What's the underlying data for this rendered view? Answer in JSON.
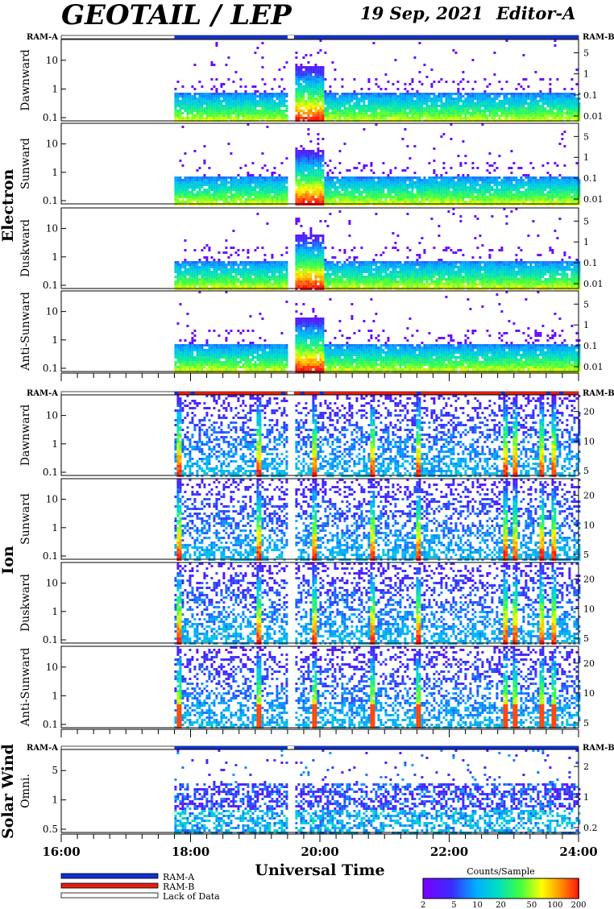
{
  "header": {
    "title": "GEOTAIL / LEP",
    "date": "19 Sep, 2021",
    "editor": "Editor-A"
  },
  "ram_labels": {
    "a": "RAM-A",
    "b": "RAM-B"
  },
  "colors": {
    "ram_a": "#1030d0",
    "ram_b": "#e02010",
    "gap": "#ffffff"
  },
  "groups": [
    {
      "id": "electron",
      "label": "Electron"
    },
    {
      "id": "ion",
      "label": "Ion"
    },
    {
      "id": "sw",
      "label": "Solar Wind"
    }
  ],
  "panels": [
    {
      "group": "electron",
      "label": "Dawnward",
      "left_ticks": [
        "0.1",
        "1",
        "10"
      ],
      "right_ticks": [
        "0.01",
        "0.1",
        "1",
        "5"
      ]
    },
    {
      "group": "electron",
      "label": "Sunward",
      "left_ticks": [
        "0.1",
        "1",
        "10"
      ],
      "right_ticks": [
        "0.01",
        "0.1",
        "1",
        "5"
      ]
    },
    {
      "group": "electron",
      "label": "Duskward",
      "left_ticks": [
        "0.1",
        "1",
        "10"
      ],
      "right_ticks": [
        "0.01",
        "0.1",
        "1",
        "5"
      ]
    },
    {
      "group": "electron",
      "label": "Anti-Sunward",
      "left_ticks": [
        "0.1",
        "1",
        "10"
      ],
      "right_ticks": [
        "0.01",
        "0.1",
        "1",
        "5"
      ]
    },
    {
      "group": "ion",
      "label": "Dawnward",
      "left_ticks": [
        "0.1",
        "1",
        "10"
      ],
      "right_ticks": [
        "5",
        "10",
        "20"
      ]
    },
    {
      "group": "ion",
      "label": "Sunward",
      "left_ticks": [
        "0.1",
        "1",
        "10"
      ],
      "right_ticks": [
        "5",
        "10",
        "20"
      ]
    },
    {
      "group": "ion",
      "label": "Duskward",
      "left_ticks": [
        "0.1",
        "1",
        "10"
      ],
      "right_ticks": [
        "5",
        "10",
        "20"
      ]
    },
    {
      "group": "ion",
      "label": "Anti-Sunward",
      "left_ticks": [
        "0.1",
        "1",
        "10"
      ],
      "right_ticks": [
        "5",
        "10",
        "20"
      ]
    },
    {
      "group": "sw",
      "label": "Omni.",
      "left_ticks": [
        "0.5",
        "1",
        "5"
      ],
      "right_ticks": [
        "0.2",
        "1",
        "2"
      ]
    }
  ],
  "chart_data": {
    "type": "heatmap",
    "x_axis": {
      "label": "Universal Time",
      "ticks": [
        "16:00",
        "18:00",
        "20:00",
        "22:00",
        "24:00"
      ],
      "range_hours": [
        16,
        24
      ]
    },
    "data_start_ut": 17.75,
    "gaps_ut": [
      [
        19.5,
        19.6
      ]
    ],
    "ram_mode_ut": {
      "electron": [
        {
          "from": 17.75,
          "to": 24.0,
          "mode": "RAM-A"
        }
      ],
      "ion": [
        {
          "from": 17.75,
          "to": 24.0,
          "mode": "RAM-B"
        }
      ],
      "sw": [
        {
          "from": 17.75,
          "to": 24.0,
          "mode": "RAM-A"
        }
      ]
    },
    "legend": [
      {
        "label": "RAM-A",
        "color": "#1030d0"
      },
      {
        "label": "RAM-B",
        "color": "#e02010"
      },
      {
        "label": "Lack of Data",
        "color": "#ffffff"
      }
    ],
    "colorbar": {
      "title": "Counts/Sample",
      "ticks": [
        "2",
        "5",
        "10",
        "20",
        "50",
        "100",
        "200"
      ],
      "scale": "log",
      "range": [
        2,
        200
      ]
    }
  }
}
